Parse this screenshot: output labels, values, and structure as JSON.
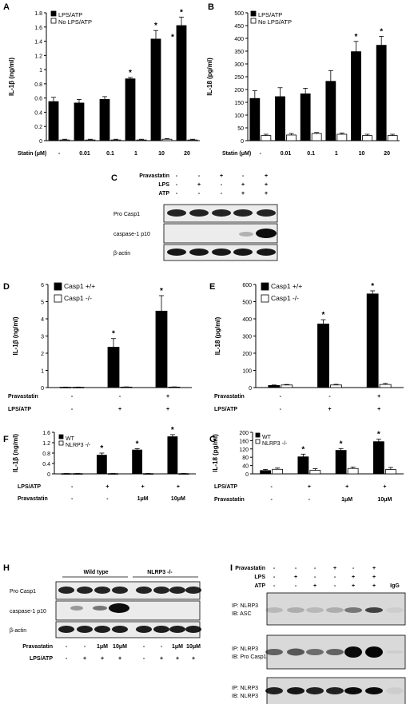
{
  "panels": {
    "A": {
      "letter": "A",
      "chart_data": {
        "type": "bar",
        "ylabel": "IL-1β (ng/ml)",
        "xlabel": "Statin (μM)",
        "categories": [
          "-",
          "0.01",
          "0.1",
          "1",
          "10",
          "20"
        ],
        "yticks": [
          "0",
          "0.2",
          "0.4",
          "0.6",
          "0.8",
          "1",
          "1.2",
          "1.4",
          "1.6",
          "1.8"
        ],
        "ylim": [
          0,
          1.8
        ],
        "series": [
          {
            "name": "LPS/ATP",
            "color": "#000000",
            "values": [
              0.55,
              0.53,
              0.58,
              0.87,
              1.43,
              1.62
            ],
            "errors": [
              0.06,
              0.05,
              0.04,
              0.02,
              0.12,
              0.12
            ]
          },
          {
            "name": "No LPS/ATP",
            "color": "#ffffff",
            "values": [
              0.01,
              0.01,
              0.01,
              0.01,
              0.02,
              0.01
            ],
            "errors": [
              0.01,
              0.01,
              0.01,
              0.01,
              0.01,
              0.01
            ]
          }
        ],
        "stars": [
          "",
          "",
          "",
          "*",
          "*",
          "*"
        ],
        "extra_star": "*",
        "legend": "top-left"
      }
    },
    "B": {
      "letter": "B",
      "chart_data": {
        "type": "bar",
        "ylabel": "IL-18 (pg/ml)",
        "xlabel": "Statin (μM)",
        "categories": [
          "-",
          "0.01",
          "0.1",
          "1",
          "10",
          "20"
        ],
        "yticks": [
          "0",
          "50",
          "100",
          "150",
          "200",
          "250",
          "300",
          "350",
          "400",
          "450",
          "500"
        ],
        "ylim": [
          0,
          500
        ],
        "series": [
          {
            "name": "LPS/ATP",
            "color": "#000000",
            "values": [
              165,
              172,
              183,
              232,
              348,
              373
            ],
            "errors": [
              30,
              35,
              22,
              42,
              40,
              35
            ]
          },
          {
            "name": "No LPS/ATP",
            "color": "#ffffff",
            "values": [
              20,
              22,
              28,
              25,
              20,
              20
            ],
            "errors": [
              5,
              6,
              4,
              5,
              5,
              5
            ]
          }
        ],
        "stars": [
          "",
          "",
          "",
          "",
          "*",
          "*"
        ],
        "legend": "top-left"
      }
    },
    "C": {
      "letter": "C",
      "conditions": [
        {
          "label": "Pravastatin",
          "signs": [
            "-",
            "-",
            "+",
            "-",
            "+"
          ]
        },
        {
          "label": "LPS",
          "signs": [
            "-",
            "+",
            "-",
            "+",
            "+"
          ]
        },
        {
          "label": "ATP",
          "signs": [
            "-",
            "-",
            "-",
            "+",
            "+"
          ]
        }
      ],
      "bands": [
        "Pro Casp1",
        "caspase-1 p10",
        "β-actin"
      ]
    },
    "D": {
      "letter": "D",
      "chart_data": {
        "type": "bar",
        "ylabel": "IL-1β (ng/ml)",
        "yticks": [
          "0",
          "1",
          "2",
          "3",
          "4",
          "5",
          "6"
        ],
        "ylim": [
          0,
          6
        ],
        "series": [
          {
            "name": "Casp1 +/+",
            "color": "#000000",
            "values": [
              0.02,
              2.35,
              4.45
            ],
            "errors": [
              0.01,
              0.5,
              0.9
            ]
          },
          {
            "name": "Casp1 -/-",
            "color": "#ffffff",
            "values": [
              0.02,
              0.03,
              0.03
            ],
            "errors": [
              0.01,
              0.01,
              0.01
            ]
          }
        ],
        "stars": [
          "",
          "*",
          "*"
        ],
        "conditions": [
          {
            "label": "Pravastatin",
            "signs": [
              "-",
              "-",
              "+"
            ]
          },
          {
            "label": "LPS/ATP",
            "signs": [
              "-",
              "+",
              "+"
            ]
          }
        ],
        "legend": "top-left"
      }
    },
    "E": {
      "letter": "E",
      "chart_data": {
        "type": "bar",
        "ylabel": "IL-18 (pg/ml)",
        "yticks": [
          "0",
          "100",
          "200",
          "300",
          "400",
          "500",
          "600"
        ],
        "ylim": [
          0,
          600
        ],
        "series": [
          {
            "name": "Casp1 +/+",
            "color": "#000000",
            "values": [
              12,
              370,
              545
            ],
            "errors": [
              3,
              25,
              18
            ]
          },
          {
            "name": "Casp1 -/-",
            "color": "#ffffff",
            "values": [
              15,
              15,
              18
            ],
            "errors": [
              3,
              4,
              6
            ]
          }
        ],
        "stars": [
          "",
          "*",
          "*"
        ],
        "conditions": [
          {
            "label": "Pravastatin",
            "signs": [
              "-",
              "-",
              "+"
            ]
          },
          {
            "label": "LPS/ATP",
            "signs": [
              "-",
              "+",
              "+"
            ]
          }
        ],
        "legend": "top-left"
      }
    },
    "F": {
      "letter": "F",
      "chart_data": {
        "type": "bar",
        "ylabel": "IL-1β (ng/ml)",
        "yticks": [
          "0",
          "0.4",
          "0.8",
          "1.2",
          "1.6"
        ],
        "ylim": [
          0,
          1.6
        ],
        "series": [
          {
            "name": "WT",
            "color": "#000000",
            "values": [
              0.01,
              0.72,
              0.92,
              1.43
            ],
            "errors": [
              0.005,
              0.08,
              0.05,
              0.08
            ]
          },
          {
            "name": "NLRP3 -/-",
            "color": "#ffffff",
            "values": [
              0.01,
              0.01,
              0.01,
              0.01
            ],
            "errors": [
              0.005,
              0.005,
              0.005,
              0.005
            ]
          }
        ],
        "stars": [
          "",
          "*",
          "*",
          "*"
        ],
        "conditions": [
          {
            "label": "LPS/ATP",
            "signs": [
              "-",
              "+",
              "+",
              "+"
            ]
          },
          {
            "label": "Pravastatin",
            "signs": [
              "-",
              "-",
              "1μM",
              "10μM"
            ]
          }
        ],
        "legend": "top-left"
      }
    },
    "G": {
      "letter": "G",
      "chart_data": {
        "type": "bar",
        "ylabel": "IL-18 (pg/ml)",
        "yticks": [
          "0",
          "40",
          "80",
          "120",
          "160",
          "200"
        ],
        "ylim": [
          0,
          200
        ],
        "series": [
          {
            "name": "WT",
            "color": "#000000",
            "values": [
              16,
              82,
              113,
              155
            ],
            "errors": [
              5,
              13,
              9,
              12
            ]
          },
          {
            "name": "NLRP3 -/-",
            "color": "#ffffff",
            "values": [
              22,
              17,
              26,
              21
            ],
            "errors": [
              6,
              8,
              7,
              10
            ]
          }
        ],
        "stars": [
          "",
          "*",
          "*",
          "*"
        ],
        "conditions": [
          {
            "label": "LPS/ATP",
            "signs": [
              "-",
              "+",
              "+",
              "+"
            ]
          },
          {
            "label": "Pravastatin",
            "signs": [
              "-",
              "-",
              "1μM",
              "10μM"
            ]
          }
        ],
        "legend": "top-left"
      }
    },
    "H": {
      "letter": "H",
      "groups": [
        "Wild type",
        "NLRP3 -/-"
      ],
      "bands": [
        "Pro Casp1",
        "caspase-1 p10",
        "β-actin"
      ],
      "conditions": [
        {
          "label": "Pravastatin",
          "signs": [
            "-",
            "-",
            "1μM",
            "10μM",
            "-",
            "-",
            "1μM",
            "10μM"
          ]
        },
        {
          "label": "LPS/ATP",
          "signs": [
            "-",
            "+",
            "+",
            "+",
            "-",
            "+",
            "+",
            "+"
          ]
        }
      ]
    },
    "I": {
      "letter": "I",
      "conditions": [
        {
          "label": "Pravastatin",
          "signs": [
            "-",
            "-",
            "-",
            "+",
            "-",
            "+",
            ""
          ]
        },
        {
          "label": "LPS",
          "signs": [
            "-",
            "+",
            "-",
            "-",
            "+",
            "+",
            ""
          ]
        },
        {
          "label": "ATP",
          "signs": [
            "-",
            "-",
            "+",
            "-",
            "+",
            "+",
            "IgG"
          ]
        }
      ],
      "blots": [
        {
          "ip": "IP: NLRP3",
          "ib": "IB: ASC"
        },
        {
          "ip": "IP: NLRP3",
          "ib": "IB: Pro Casp1"
        },
        {
          "ip": "IP: NLRP3",
          "ib": "IB: NLRP3"
        }
      ]
    }
  }
}
